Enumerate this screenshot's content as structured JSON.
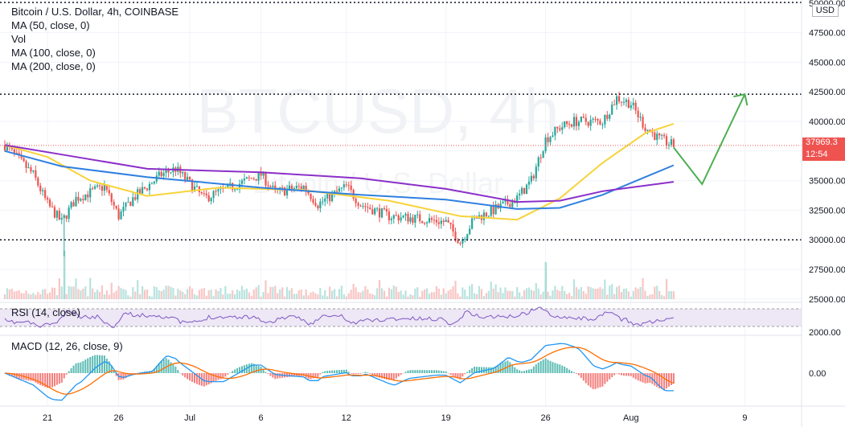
{
  "header": {
    "title": "Bitcoin / U.S. Dollar, 4h, COINBASE",
    "indicators": [
      "MA (50, close, 0)",
      "Vol",
      "MA (100, close, 0)",
      "MA (200, close, 0)"
    ]
  },
  "watermark": {
    "symbol": "BTCUSD, 4h",
    "sub": "Bitcoin / U.S. Dollar"
  },
  "price_axis": {
    "currency": "USD",
    "labels": [
      "50000.00",
      "47500.00",
      "45000.00",
      "42500.00",
      "40000.00",
      "37500.00",
      "35000.00",
      "32500.00",
      "30000.00",
      "27500.00",
      "25000.00"
    ],
    "last_price": "37969.3",
    "countdown": "12:54"
  },
  "rsi": {
    "label": "RSI (14, close)",
    "axis_label": "2000.00"
  },
  "macd": {
    "label": "MACD (12, 26, close, 9)",
    "axis_label": "0.00"
  },
  "time_axis": [
    "21",
    "26",
    "Jul",
    "6",
    "12",
    "19",
    "26",
    "Aug",
    "9"
  ],
  "colors": {
    "up": "#26a69a",
    "down": "#ef5350",
    "ma50": "#f7d33a",
    "ma100": "#2f80e0",
    "ma200": "#8b2fc9",
    "forecast": "#4caf50",
    "rsi": "#7e57c2",
    "rsi_band": "#ede7f6",
    "macd": "#2196f3",
    "signal": "#ff6d00"
  },
  "chart_data": {
    "type": "candlestick",
    "title": "Bitcoin / U.S. Dollar, 4h, COINBASE",
    "ylim": [
      23500,
      50500
    ],
    "support_resistance": [
      42300,
      30000
    ],
    "last_price": 37969.3,
    "price_path": [
      {
        "date": "Jun 18",
        "price": 38000
      },
      {
        "date": "Jun 20",
        "price": 35500
      },
      {
        "date": "Jun 21",
        "price": 33000
      },
      {
        "date": "Jun 22",
        "price": 31500
      },
      {
        "date": "Jun 23",
        "price": 33500
      },
      {
        "date": "Jun 25",
        "price": 34500
      },
      {
        "date": "Jun 26",
        "price": 32000
      },
      {
        "date": "Jun 27",
        "price": 33500
      },
      {
        "date": "Jun 29",
        "price": 35500
      },
      {
        "date": "Jun 30",
        "price": 36000
      },
      {
        "date": "Jul 2",
        "price": 33500
      },
      {
        "date": "Jul 5",
        "price": 35000
      },
      {
        "date": "Jul 6",
        "price": 35500
      },
      {
        "date": "Jul 7",
        "price": 34000
      },
      {
        "date": "Jul 9",
        "price": 34500
      },
      {
        "date": "Jul 10",
        "price": 33000
      },
      {
        "date": "Jul 12",
        "price": 34500
      },
      {
        "date": "Jul 13",
        "price": 33000
      },
      {
        "date": "Jul 15",
        "price": 32000
      },
      {
        "date": "Jul 17",
        "price": 31800
      },
      {
        "date": "Jul 19",
        "price": 31500
      },
      {
        "date": "Jul 20",
        "price": 29800
      },
      {
        "date": "Jul 21",
        "price": 31800
      },
      {
        "date": "Jul 22",
        "price": 32300
      },
      {
        "date": "Jul 24",
        "price": 33500
      },
      {
        "date": "Jul 25",
        "price": 35000
      },
      {
        "date": "Jul 26",
        "price": 38500
      },
      {
        "date": "Jul 27",
        "price": 39500
      },
      {
        "date": "Jul 28",
        "price": 40000
      },
      {
        "date": "Jul 30",
        "price": 40000
      },
      {
        "date": "Jul 31",
        "price": 42000
      },
      {
        "date": "Aug 1",
        "price": 41500
      },
      {
        "date": "Aug 2",
        "price": 39500
      },
      {
        "date": "Aug 3",
        "price": 38500
      },
      {
        "date": "Aug 4",
        "price": 37969
      }
    ],
    "series": [
      {
        "name": "MA (50, close, 0)",
        "points": [
          {
            "date": "Jun 18",
            "price": 38000
          },
          {
            "date": "Jun 21",
            "price": 37000
          },
          {
            "date": "Jun 24",
            "price": 35000
          },
          {
            "date": "Jun 28",
            "price": 33700
          },
          {
            "date": "Jul 3",
            "price": 34400
          },
          {
            "date": "Jul 9",
            "price": 34200
          },
          {
            "date": "Jul 15",
            "price": 33300
          },
          {
            "date": "Jul 20",
            "price": 32000
          },
          {
            "date": "Jul 24",
            "price": 31700
          },
          {
            "date": "Jul 27",
            "price": 33500
          },
          {
            "date": "Jul 30",
            "price": 36500
          },
          {
            "date": "Aug 2",
            "price": 39000
          },
          {
            "date": "Aug 4",
            "price": 39800
          }
        ]
      },
      {
        "name": "MA (100, close, 0)",
        "points": [
          {
            "date": "Jun 18",
            "price": 37500
          },
          {
            "date": "Jun 22",
            "price": 36200
          },
          {
            "date": "Jun 28",
            "price": 35300
          },
          {
            "date": "Jul 6",
            "price": 34400
          },
          {
            "date": "Jul 13",
            "price": 33800
          },
          {
            "date": "Jul 19",
            "price": 33400
          },
          {
            "date": "Jul 24",
            "price": 32600
          },
          {
            "date": "Jul 27",
            "price": 32700
          },
          {
            "date": "Jul 30",
            "price": 33800
          },
          {
            "date": "Aug 2",
            "price": 35300
          },
          {
            "date": "Aug 4",
            "price": 36300
          }
        ]
      },
      {
        "name": "MA (200, close, 0)",
        "points": [
          {
            "date": "Jun 18",
            "price": 38000
          },
          {
            "date": "Jun 22",
            "price": 37200
          },
          {
            "date": "Jun 28",
            "price": 36000
          },
          {
            "date": "Jul 6",
            "price": 35700
          },
          {
            "date": "Jul 13",
            "price": 35200
          },
          {
            "date": "Jul 19",
            "price": 34300
          },
          {
            "date": "Jul 24",
            "price": 33200
          },
          {
            "date": "Jul 27",
            "price": 33300
          },
          {
            "date": "Jul 30",
            "price": 34100
          },
          {
            "date": "Aug 4",
            "price": 34900
          }
        ]
      }
    ],
    "forecast_path": [
      {
        "date": "Aug 4",
        "price": 37800
      },
      {
        "date": "Aug 6",
        "price": 34700
      },
      {
        "date": "Aug 9",
        "price": 42300
      }
    ]
  }
}
